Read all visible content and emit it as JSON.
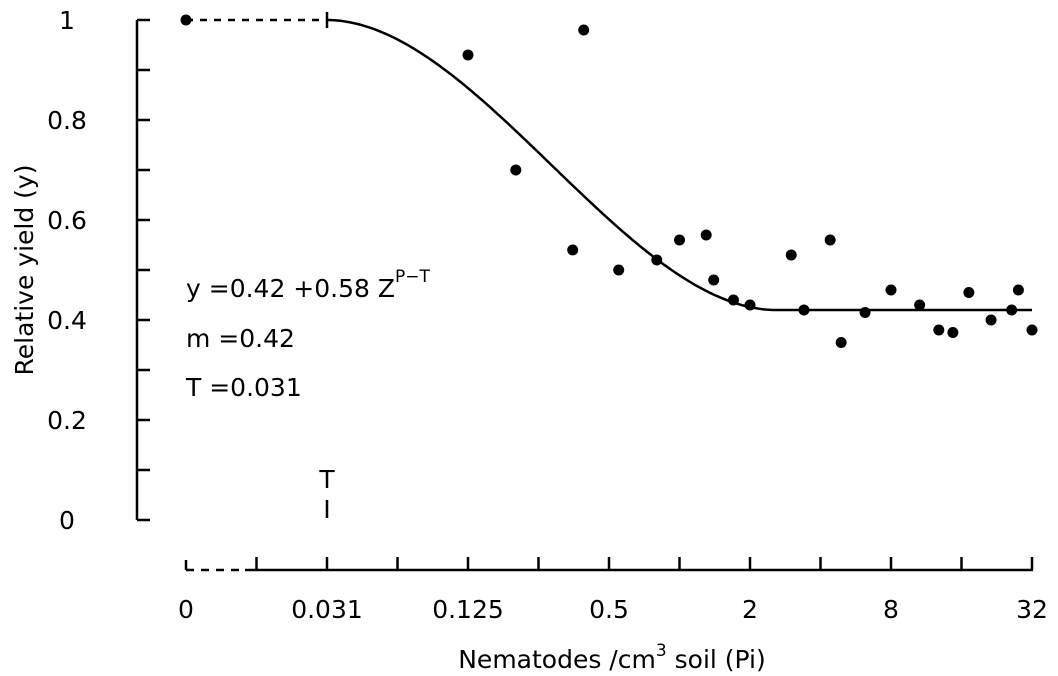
{
  "chart_data": {
    "type": "scatter",
    "xlabel_main": "Nematodes /cm",
    "xlabel_sup": "3",
    "xlabel_tail": " soil  (Pi)",
    "ylabel": "Relative  yield  (y)",
    "ylim": [
      0,
      1
    ],
    "xscale": "log2",
    "x_ticks": [
      "0",
      "0.031",
      "0.125",
      "0.5",
      "2",
      "8",
      "32"
    ],
    "y_ticks": [
      "0",
      "0.2",
      "0.4",
      "0.6",
      "0.8",
      "1"
    ],
    "y_tick_values": [
      0,
      0.2,
      0.4,
      0.6,
      0.8,
      1
    ],
    "annotations": {
      "equation_main": "y  =0.42 +0.58 Z",
      "equation_sup": "P−T",
      "m_line": "m =0.42",
      "t_line": "T  =0.031",
      "t_marker": "T"
    },
    "model": {
      "m": 0.42,
      "T": 0.031
    },
    "control_point": {
      "x": 0,
      "y": 1.0
    },
    "points": [
      {
        "x": 0.125,
        "y": 0.93
      },
      {
        "x": 0.2,
        "y": 0.7
      },
      {
        "x": 0.35,
        "y": 0.54
      },
      {
        "x": 0.39,
        "y": 0.98
      },
      {
        "x": 0.55,
        "y": 0.5
      },
      {
        "x": 0.8,
        "y": 0.52
      },
      {
        "x": 1.0,
        "y": 0.56
      },
      {
        "x": 1.3,
        "y": 0.57
      },
      {
        "x": 1.4,
        "y": 0.48
      },
      {
        "x": 1.7,
        "y": 0.44
      },
      {
        "x": 2.0,
        "y": 0.43
      },
      {
        "x": 3.0,
        "y": 0.53
      },
      {
        "x": 3.4,
        "y": 0.42
      },
      {
        "x": 4.4,
        "y": 0.56
      },
      {
        "x": 4.9,
        "y": 0.355
      },
      {
        "x": 6.2,
        "y": 0.415
      },
      {
        "x": 8.0,
        "y": 0.46
      },
      {
        "x": 10.6,
        "y": 0.43
      },
      {
        "x": 12.8,
        "y": 0.38
      },
      {
        "x": 14.7,
        "y": 0.375
      },
      {
        "x": 17.2,
        "y": 0.455
      },
      {
        "x": 21.4,
        "y": 0.4
      },
      {
        "x": 26.2,
        "y": 0.42
      },
      {
        "x": 28.0,
        "y": 0.46
      },
      {
        "x": 32.0,
        "y": 0.38
      }
    ]
  }
}
